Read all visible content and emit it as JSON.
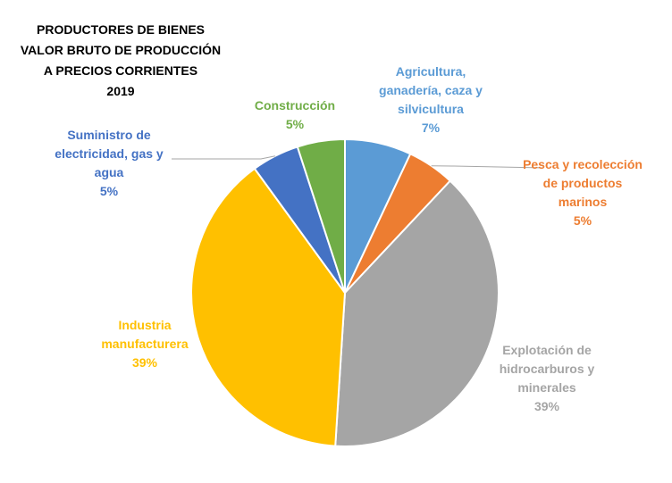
{
  "chart_data": {
    "type": "pie",
    "title_lines": [
      "PRODUCTORES DE BIENES",
      "VALOR BRUTO DE PRODUCCIÓN",
      "A PRECIOS CORRIENTES",
      "2019"
    ],
    "slices": [
      {
        "key": "agricultura",
        "name_lines": [
          "Agricultura,",
          "ganadería, caza y",
          "silvicultura"
        ],
        "value": 7,
        "percent_label": "7%",
        "color": "#5B9BD5"
      },
      {
        "key": "pesca",
        "name_lines": [
          "Pesca y recolección",
          "de productos",
          "marinos"
        ],
        "value": 5,
        "percent_label": "5%",
        "color": "#ED7D31"
      },
      {
        "key": "hidrocarburos",
        "name_lines": [
          "Explotación de",
          "hidrocarburos y",
          "minerales"
        ],
        "value": 39,
        "percent_label": "39%",
        "color": "#A5A5A5"
      },
      {
        "key": "industria",
        "name_lines": [
          "Industria",
          "manufacturera"
        ],
        "value": 39,
        "percent_label": "39%",
        "color": "#FFC000"
      },
      {
        "key": "electricidad",
        "name_lines": [
          "Suministro de",
          "electricidad, gas y",
          "agua"
        ],
        "value": 5,
        "percent_label": "5%",
        "color": "#4472C4"
      },
      {
        "key": "construccion",
        "name_lines": [
          "Construcción"
        ],
        "value": 5,
        "percent_label": "5%",
        "color": "#70AD47"
      }
    ]
  }
}
